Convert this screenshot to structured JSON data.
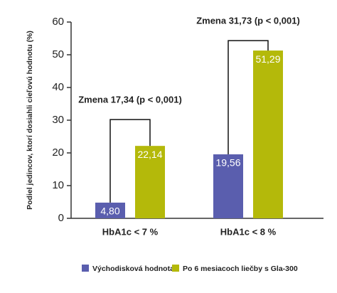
{
  "chart_data": {
    "type": "bar",
    "y_label": "Podiel jedincov, ktorí dosiahli cieľovú hodnotu (%)",
    "categories": [
      "HbA1c < 7 %",
      "HbA1c < 8 %"
    ],
    "series": [
      {
        "name": "Východisková hodnota",
        "color": "#5a5eae",
        "values": [
          4.8,
          19.56
        ],
        "value_labels": [
          "4,80",
          "19,56"
        ]
      },
      {
        "name": "Po 6 mesiacoch liečby s Gla-300",
        "color": "#b4b90a",
        "values": [
          22.14,
          51.29
        ],
        "value_labels": [
          "22,14",
          "51,29"
        ]
      }
    ],
    "annotations": [
      "Zmena 17,34 (p < 0,001)",
      "Zmena 31,73 (p < 0,001)"
    ],
    "ylim": [
      0,
      60
    ],
    "yticks": [
      0,
      10,
      20,
      30,
      40,
      50,
      60
    ]
  }
}
